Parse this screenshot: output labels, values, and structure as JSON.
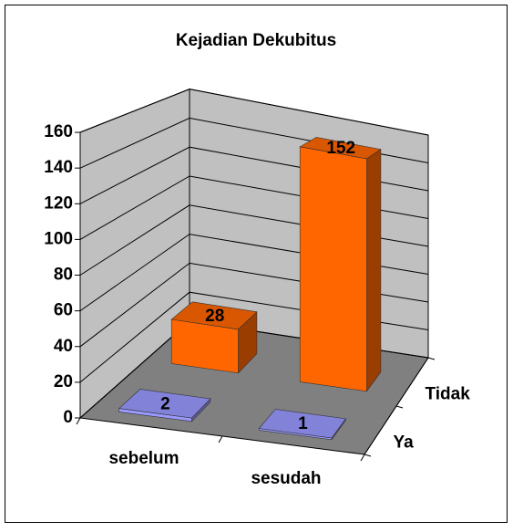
{
  "chart_data": {
    "type": "bar3d",
    "title": "Kejadian Dekubitus",
    "categories": [
      "sebelum",
      "sesudah"
    ],
    "series": [
      {
        "name": "Ya",
        "color": "#9999ff",
        "values": [
          2,
          1
        ]
      },
      {
        "name": "Tidak",
        "color": "#ff6600",
        "values": [
          28,
          152
        ]
      }
    ],
    "ylim": [
      0,
      160
    ],
    "yticks": [
      0,
      20,
      40,
      60,
      80,
      100,
      120,
      140,
      160
    ],
    "grid": true
  }
}
